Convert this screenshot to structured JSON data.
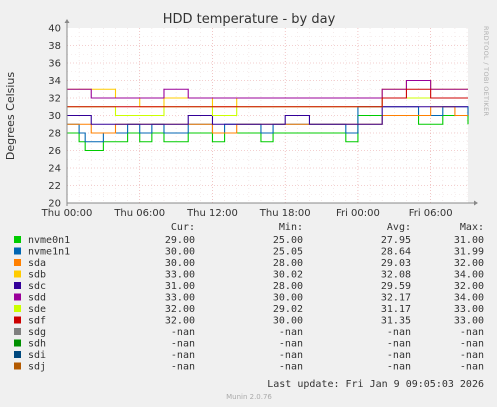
{
  "chart_data": {
    "type": "line",
    "title": "HDD temperature - by day",
    "ylabel": "Degrees Celsius",
    "ylim": [
      20,
      40
    ],
    "yticks": [
      20,
      22,
      24,
      26,
      28,
      30,
      32,
      34,
      36,
      38,
      40
    ],
    "xlim": [
      "Thu 00:00",
      "Fri 09:05"
    ],
    "xticks": [
      "Thu 00:00",
      "Thu 06:00",
      "Thu 12:00",
      "Thu 18:00",
      "Fri 00:00",
      "Fri 06:00"
    ],
    "grid": true,
    "legend_headers": [
      "Cur:",
      "Min:",
      "Avg:",
      "Max:"
    ],
    "series": [
      {
        "name": "nvme0n1",
        "color": "#00cc00",
        "cur": "29.00",
        "min": "25.00",
        "avg": "27.95",
        "max": "31.00",
        "x_hours": [
          0,
          1,
          1.5,
          2,
          3,
          4,
          5,
          6,
          7,
          8,
          9,
          10,
          11,
          12,
          13,
          14,
          15,
          16,
          17,
          18,
          19,
          20,
          21,
          22,
          23,
          24,
          25,
          26,
          27,
          28,
          29,
          30,
          31,
          32,
          33,
          33.08
        ],
        "y": [
          28,
          27,
          26,
          26,
          27,
          27,
          28,
          27,
          28,
          27,
          27,
          28,
          28,
          27,
          28,
          28,
          28,
          27,
          28,
          28,
          28,
          28,
          28,
          28,
          27,
          30,
          30,
          30,
          30,
          30,
          29,
          29,
          30,
          30,
          30,
          29
        ]
      },
      {
        "name": "nvme1n1",
        "color": "#0066b3",
        "cur": "30.00",
        "min": "25.05",
        "avg": "28.64",
        "max": "31.99",
        "x_hours": [
          0,
          1,
          1.5,
          2,
          3,
          4,
          5,
          6,
          7,
          8,
          9,
          10,
          11,
          12,
          13,
          14,
          15,
          16,
          17,
          18,
          19,
          20,
          21,
          22,
          23,
          24,
          25,
          26,
          27,
          28,
          29,
          30,
          31,
          32,
          33,
          33.08
        ],
        "y": [
          29,
          28,
          27,
          27,
          28,
          28,
          29,
          28,
          29,
          28,
          28,
          29,
          29,
          28,
          29,
          29,
          29,
          28,
          29,
          29,
          29,
          29,
          29,
          29,
          28,
          31,
          31,
          31,
          31,
          31,
          30,
          30,
          31,
          31,
          31,
          30
        ]
      },
      {
        "name": "sda",
        "color": "#ff8000",
        "cur": "30.00",
        "min": "28.00",
        "avg": "29.03",
        "max": "32.00",
        "x_hours": [
          0,
          2,
          4,
          6,
          8,
          10,
          12,
          14,
          16,
          18,
          20,
          22,
          24,
          26,
          28,
          30,
          32,
          33.08
        ],
        "y": [
          29,
          28,
          29,
          29,
          29,
          29,
          28,
          29,
          29,
          29,
          29,
          29,
          29,
          30,
          30,
          31,
          30,
          30
        ]
      },
      {
        "name": "sdb",
        "color": "#ffcc00",
        "cur": "33.00",
        "min": "30.02",
        "avg": "32.08",
        "max": "34.00",
        "x_hours": [
          0,
          2,
          4,
          6,
          8,
          10,
          12,
          14,
          16,
          18,
          20,
          22,
          24,
          26,
          28,
          30,
          32,
          33.08
        ],
        "y": [
          33,
          33,
          32,
          31,
          32,
          32,
          31,
          32,
          32,
          32,
          32,
          32,
          32,
          33,
          34,
          33,
          33,
          33
        ]
      },
      {
        "name": "sdc",
        "color": "#330099",
        "cur": "31.00",
        "min": "28.00",
        "avg": "29.59",
        "max": "32.00",
        "x_hours": [
          0,
          2,
          4,
          6,
          8,
          10,
          12,
          14,
          16,
          18,
          20,
          22,
          24,
          26,
          28,
          30,
          32,
          33.08
        ],
        "y": [
          30,
          29,
          29,
          29,
          29,
          30,
          29,
          29,
          29,
          30,
          29,
          29,
          29,
          31,
          31,
          31,
          31,
          31
        ]
      },
      {
        "name": "sdd",
        "color": "#990099",
        "cur": "33.00",
        "min": "30.00",
        "avg": "32.17",
        "max": "34.00",
        "x_hours": [
          0,
          2,
          4,
          6,
          8,
          10,
          12,
          14,
          16,
          18,
          20,
          22,
          24,
          26,
          28,
          30,
          32,
          33.08
        ],
        "y": [
          33,
          32,
          32,
          32,
          33,
          32,
          32,
          32,
          32,
          32,
          32,
          32,
          32,
          33,
          34,
          33,
          33,
          33
        ]
      },
      {
        "name": "sde",
        "color": "#ccff00",
        "cur": "32.00",
        "min": "29.02",
        "avg": "31.17",
        "max": "33.00",
        "x_hours": [
          0,
          2,
          4,
          6,
          8,
          10,
          12,
          14,
          16,
          18,
          20,
          22,
          24,
          26,
          28,
          30,
          32,
          33.08
        ],
        "y": [
          31,
          31,
          30,
          30,
          31,
          31,
          30,
          31,
          31,
          31,
          31,
          31,
          31,
          32,
          32,
          32,
          32,
          32
        ]
      },
      {
        "name": "sdf",
        "color": "#cc0000",
        "cur": "32.00",
        "min": "30.00",
        "avg": "31.35",
        "max": "33.00",
        "x_hours": [
          0,
          2,
          4,
          6,
          8,
          10,
          12,
          14,
          16,
          18,
          20,
          22,
          24,
          26,
          28,
          30,
          32,
          33.08
        ],
        "y": [
          31,
          31,
          31,
          31,
          31,
          31,
          31,
          31,
          31,
          31,
          31,
          31,
          31,
          32,
          33,
          32,
          32,
          32
        ]
      },
      {
        "name": "sdg",
        "color": "#808080",
        "cur": "-nan",
        "min": "-nan",
        "avg": "-nan",
        "max": "-nan",
        "x_hours": [],
        "y": []
      },
      {
        "name": "sdh",
        "color": "#008f00",
        "cur": "-nan",
        "min": "-nan",
        "avg": "-nan",
        "max": "-nan",
        "x_hours": [],
        "y": []
      },
      {
        "name": "sdi",
        "color": "#00487d",
        "cur": "-nan",
        "min": "-nan",
        "avg": "-nan",
        "max": "-nan",
        "x_hours": [],
        "y": []
      },
      {
        "name": "sdj",
        "color": "#b35a00",
        "cur": "-nan",
        "min": "-nan",
        "avg": "-nan",
        "max": "-nan",
        "x_hours": [],
        "y": []
      }
    ]
  },
  "footer": {
    "last_update": "Last update: Fri Jan  9 09:05:03 2026",
    "version": "Munin 2.0.76",
    "vertical_label": "RRDTOOL / TOBI OETIKER"
  }
}
